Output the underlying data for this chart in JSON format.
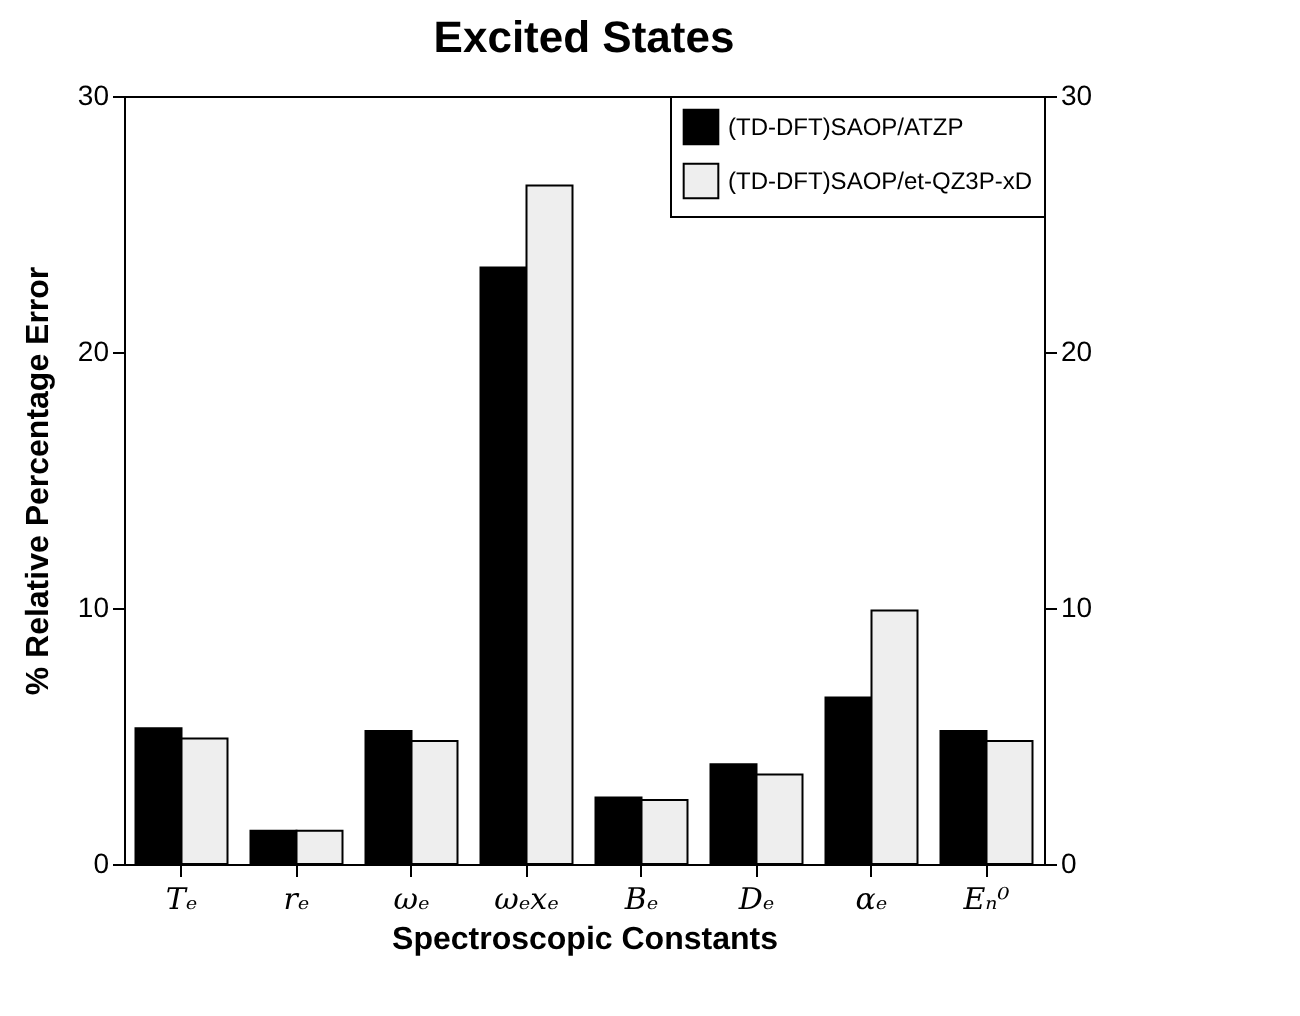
{
  "chart_data": {
    "type": "bar",
    "title": "Excited States",
    "xlabel": "Spectroscopic Constants",
    "ylabel": "% Relative Percentage Error",
    "categories": [
      "Tₑ",
      "rₑ",
      "ωₑ",
      "ωₑxₑ",
      "Bₑ",
      "Dₑ",
      "αₑ",
      "Eₙ⁰"
    ],
    "series": [
      {
        "name": "(TD-DFT)SAOP/ATZP",
        "color": "#000000",
        "values": [
          5.3,
          1.3,
          5.2,
          23.3,
          2.6,
          3.9,
          6.5,
          5.2
        ]
      },
      {
        "name": "(TD-DFT)SAOP/et-QZ3P-xD",
        "color": "#eeeeee",
        "values": [
          4.9,
          1.3,
          4.8,
          26.5,
          2.5,
          3.5,
          9.9,
          4.8
        ]
      }
    ],
    "ylim": [
      0,
      30
    ],
    "yticks": [
      0,
      10,
      20,
      30
    ],
    "y2lim": [
      0,
      30
    ],
    "y2ticks": [
      0,
      10,
      20,
      30
    ],
    "grid": false,
    "legend": "top right"
  }
}
